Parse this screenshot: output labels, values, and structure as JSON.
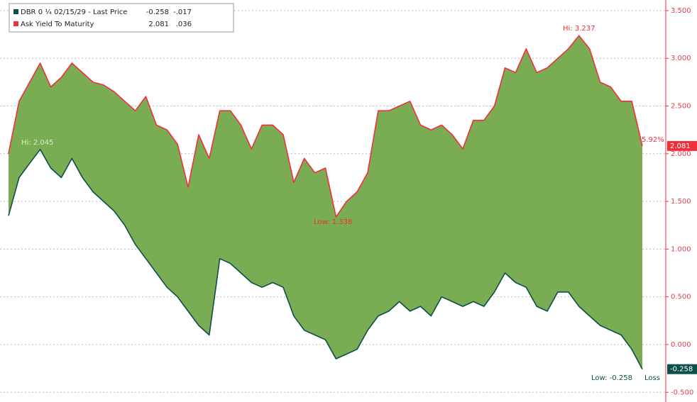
{
  "chart_data": {
    "type": "line",
    "categories": [
      null,
      null,
      null,
      null,
      null,
      null,
      null,
      null,
      null,
      null,
      null,
      null,
      null,
      null,
      null,
      null,
      null,
      null,
      null,
      null,
      null,
      null,
      null,
      null,
      null,
      null,
      null,
      null,
      null,
      null,
      null,
      null,
      null,
      null,
      null,
      null,
      null,
      null,
      null,
      null,
      null,
      null,
      null,
      null,
      null,
      null,
      null,
      null,
      null,
      null,
      null,
      null,
      null,
      null,
      null,
      null,
      null,
      null,
      null,
      null,
      null
    ],
    "series": [
      {
        "name": "Ask Yield To Maturity",
        "color": "#f0303c",
        "last": "2.081",
        "change": ".036",
        "values": [
          2.0,
          2.55,
          2.75,
          2.95,
          2.7,
          2.8,
          2.95,
          2.85,
          2.75,
          2.72,
          2.65,
          2.55,
          2.45,
          2.6,
          2.3,
          2.25,
          2.1,
          1.65,
          2.2,
          1.95,
          2.45,
          2.45,
          2.3,
          2.05,
          2.3,
          2.3,
          2.2,
          1.7,
          1.95,
          1.8,
          1.85,
          1.338,
          1.5,
          1.6,
          1.8,
          2.45,
          2.45,
          2.5,
          2.55,
          2.3,
          2.25,
          2.3,
          2.2,
          2.05,
          2.35,
          2.35,
          2.5,
          2.9,
          2.85,
          3.1,
          2.85,
          2.9,
          3.0,
          3.1,
          3.237,
          3.1,
          2.75,
          2.7,
          2.55,
          2.55,
          2.081
        ]
      },
      {
        "name": "DBR 0 ¼ 02/15/29 - Last Price",
        "color": "#0d4f4a",
        "last": "-0.258",
        "change": "-.017",
        "values": [
          1.35,
          1.75,
          1.9,
          2.045,
          1.85,
          1.75,
          1.95,
          1.75,
          1.6,
          1.5,
          1.4,
          1.25,
          1.05,
          0.9,
          0.75,
          0.6,
          0.5,
          0.35,
          0.2,
          0.1,
          0.9,
          0.85,
          0.75,
          0.65,
          0.6,
          0.65,
          0.6,
          0.3,
          0.15,
          0.1,
          0.05,
          -0.15,
          -0.1,
          -0.05,
          0.15,
          0.3,
          0.35,
          0.45,
          0.35,
          0.4,
          0.3,
          0.5,
          0.45,
          0.4,
          0.45,
          0.4,
          0.55,
          0.75,
          0.65,
          0.6,
          0.4,
          0.35,
          0.55,
          0.55,
          0.4,
          0.3,
          0.2,
          0.15,
          0.1,
          -0.05,
          -0.258
        ]
      }
    ],
    "fill_color": "#72a84a",
    "ylim": [
      -0.565,
      3.611
    ],
    "yticks": [
      {
        "value": -0.5,
        "label": "-0.500"
      },
      {
        "value": 0,
        "label": "0.000"
      },
      {
        "value": 0.5,
        "label": "0.500"
      },
      {
        "value": 1,
        "label": "1.000"
      },
      {
        "value": 1.5,
        "label": "1.500"
      },
      {
        "value": 2,
        "label": "2.000"
      },
      {
        "value": 2.5,
        "label": "2.500"
      },
      {
        "value": 3,
        "label": "3.000"
      },
      {
        "value": 3.5,
        "label": "3.500"
      }
    ],
    "grid": true,
    "annotations": [
      "Hi: 2.045",
      "Low: 1.338",
      "Hi: 3.237",
      "Low: -0.258",
      "5.92%",
      "Loss"
    ]
  }
}
